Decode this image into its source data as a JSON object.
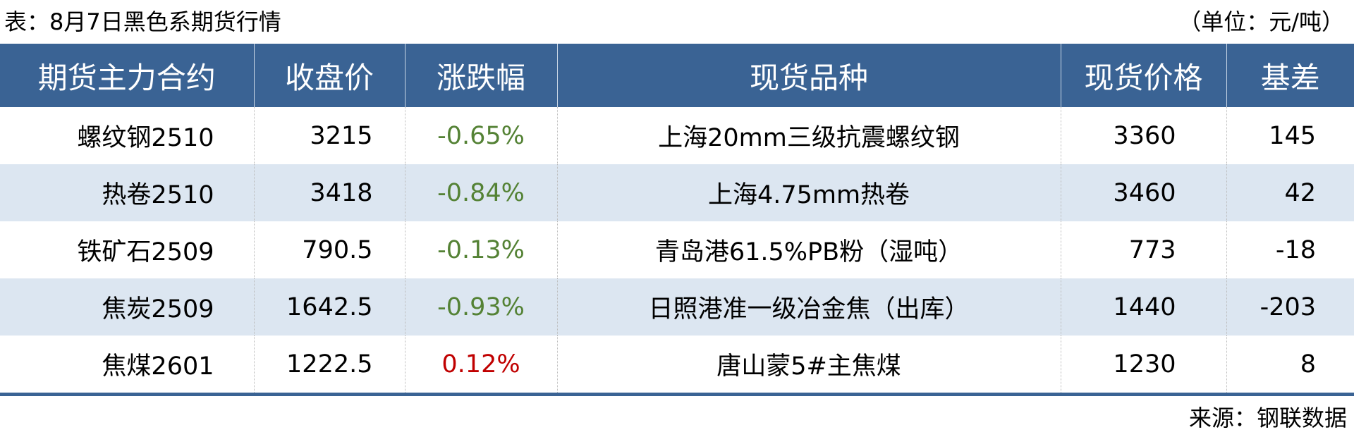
{
  "title": "表：8月7日黑色系期货行情",
  "unit": "（单位：元/吨）",
  "headers": [
    "期货主力合约",
    "收盘价",
    "涨跌幅",
    "现货品种",
    "现货价格",
    "基差"
  ],
  "rows": [
    {
      "contract": "螺纹钢2510",
      "close": "3215",
      "change": "-0.65%",
      "spot": "上海20mm三级抗震螺纹钢",
      "spot_price": "3360",
      "basis": "145"
    },
    {
      "contract": "热卷2510",
      "close": "3418",
      "change": "-0.84%",
      "spot": "上海4.75mm热卷",
      "spot_price": "3460",
      "basis": "42"
    },
    {
      "contract": "铁矿石2509",
      "close": "790.5",
      "change": "-0.13%",
      "spot": "青岛港61.5%PB粉（湿吨）",
      "spot_price": "773",
      "basis": "-18"
    },
    {
      "contract": "焦炭2509",
      "close": "1642.5",
      "change": "-0.93%",
      "spot": "日照港准一级冶金焦（出库）",
      "spot_price": "1440",
      "basis": "-203"
    },
    {
      "contract": "焦煤2601",
      "close": "1222.5",
      "change": "0.12%",
      "spot": "唐山蒙5#主焦煤",
      "spot_price": "1230",
      "basis": "8"
    }
  ],
  "source": "来源：钢联数据",
  "colors": {
    "header_bg": "#3a6394",
    "stripe": "#dce6f1",
    "negative": "#548235",
    "positive": "#c00000"
  }
}
